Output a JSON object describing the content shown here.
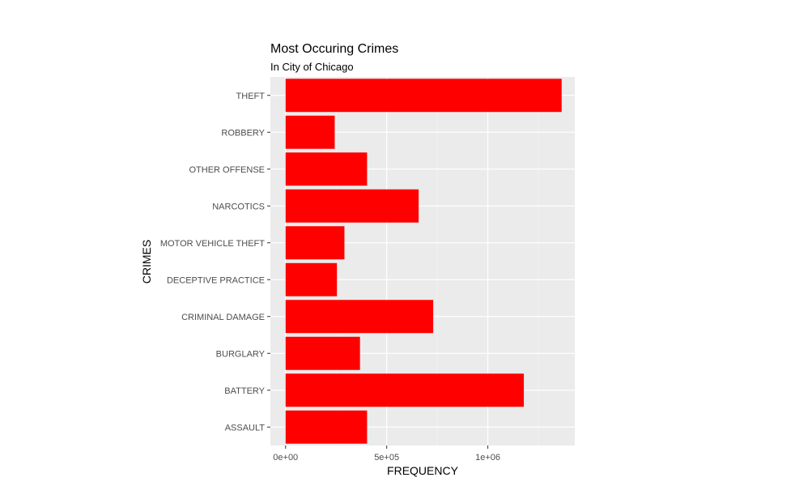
{
  "chart_data": {
    "type": "bar",
    "orientation": "horizontal",
    "title": "Most Occuring Crimes",
    "subtitle": "In City of Chicago",
    "xlabel": "FREQUENCY",
    "ylabel": "CRIMES",
    "categories": [
      "ASSAULT",
      "BATTERY",
      "BURGLARY",
      "CRIMINAL DAMAGE",
      "DECEPTIVE PRACTICE",
      "MOTOR VEHICLE THEFT",
      "NARCOTICS",
      "OTHER OFFENSE",
      "ROBBERY",
      "THEFT"
    ],
    "values": [
      403000,
      1178000,
      368000,
      730000,
      254000,
      291000,
      658000,
      403000,
      243000,
      1365000
    ],
    "xlim": [
      -75000,
      1430000
    ],
    "xticks": [
      0,
      500000,
      1000000
    ],
    "xtick_labels": [
      "0e+00",
      "5e+05",
      "1e+06"
    ],
    "grid": true,
    "colors": {
      "bar": "#ff0000",
      "panel": "#ebebeb",
      "grid_major": "#ffffff",
      "grid_minor": "#f5f5f5"
    }
  }
}
